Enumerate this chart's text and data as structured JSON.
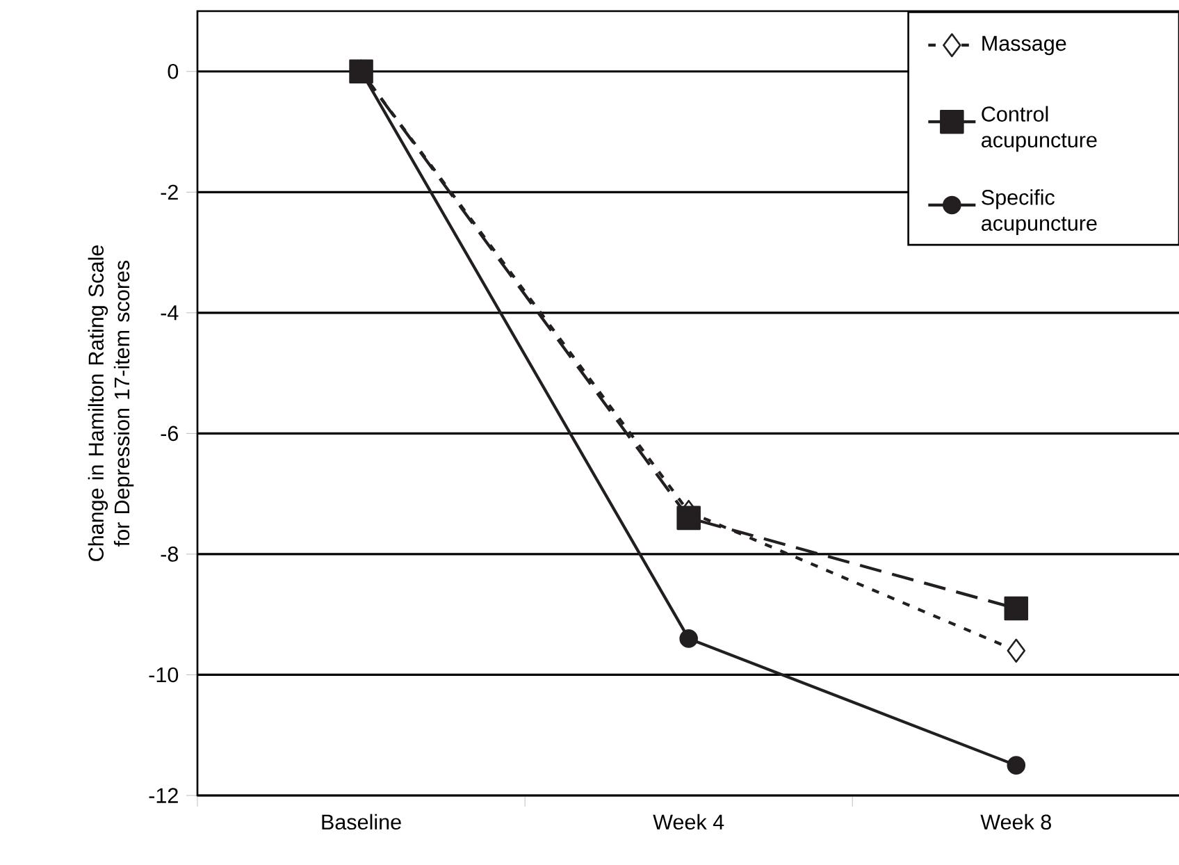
{
  "chart_data": {
    "type": "line",
    "ylabel": "Change in Hamilton Rating Scale for Depression 17-item scores",
    "categories": [
      "Baseline",
      "Week 4",
      "Week 8"
    ],
    "series": [
      {
        "name": "Massage",
        "color": "#231f20",
        "marker": "diamond",
        "line_style": "dotted",
        "values": [
          0,
          -7.3,
          -9.6
        ]
      },
      {
        "name": "Control acupuncture",
        "color": "#231f20",
        "marker": "square",
        "line_style": "dashed",
        "values": [
          0,
          -7.4,
          -8.9
        ]
      },
      {
        "name": "Specific acupuncture",
        "color": "#231f20",
        "marker": "circle",
        "line_style": "solid",
        "values": [
          0,
          -9.4,
          -11.5
        ]
      }
    ],
    "ylim": [
      -12,
      1
    ],
    "yticks": [
      -12,
      -10,
      -8,
      -6,
      -4,
      -2,
      0
    ],
    "grid": "y",
    "legend": "top right"
  }
}
